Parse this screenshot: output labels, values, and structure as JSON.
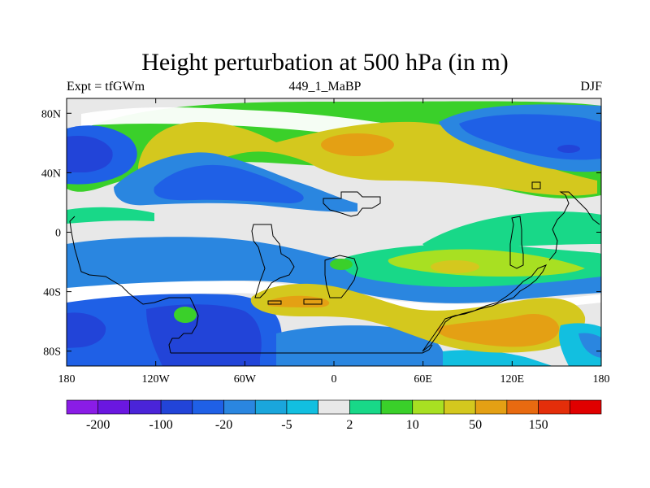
{
  "header": {
    "title": "Height perturbation at 500 hPa (in m)",
    "left_label": "Expt = tfGWm",
    "center_label": "449_1_MaBP",
    "right_label": "DJF"
  },
  "chart_data": {
    "type": "filled-contour-map",
    "title": "Height perturbation at 500 hPa (in m)",
    "variable": "Height perturbation at 500 hPa",
    "units": "m",
    "experiment": "tfGWm",
    "case": "449_1_MaBP",
    "season": "DJF",
    "xlim": [
      -180,
      180
    ],
    "ylim": [
      -90,
      90
    ],
    "x_ticks": [
      {
        "value": -180,
        "label": "180"
      },
      {
        "value": -120,
        "label": "120W"
      },
      {
        "value": -60,
        "label": "60W"
      },
      {
        "value": 0,
        "label": "0"
      },
      {
        "value": 60,
        "label": "60E"
      },
      {
        "value": 120,
        "label": "120E"
      },
      {
        "value": 180,
        "label": "180"
      }
    ],
    "y_ticks": [
      {
        "value": 80,
        "label": "80N"
      },
      {
        "value": 40,
        "label": "40N"
      },
      {
        "value": 0,
        "label": "0"
      },
      {
        "value": -40,
        "label": "40S"
      },
      {
        "value": -80,
        "label": "80S"
      }
    ],
    "levels": [
      -200,
      -150,
      -100,
      -50,
      -20,
      -10,
      -5,
      -2,
      2,
      5,
      10,
      20,
      50,
      100,
      150,
      200
    ],
    "colorbar_labels": [
      "-200",
      "-100",
      "-20",
      "-5",
      "2",
      "10",
      "50",
      "150"
    ],
    "colors": [
      "#8a1ce6",
      "#6a17e0",
      "#4a24d8",
      "#2244d8",
      "#1f60e6",
      "#2a86e0",
      "#1aa6dc",
      "#12bfe0",
      "#e8e8e8",
      "#18d888",
      "#3ad02a",
      "#a8e022",
      "#d4c81e",
      "#e4a014",
      "#e86a10",
      "#e42e0a",
      "#e00000"
    ],
    "features": [
      {
        "name": "arctic-high-band",
        "lon": [
          -150,
          180
        ],
        "lat": [
          66,
          84
        ],
        "value": 10
      },
      {
        "name": "north-atlantic-eurasia-high",
        "lon": [
          -60,
          135
        ],
        "lat": [
          32,
          80
        ],
        "value": 50
      },
      {
        "name": "central-asia-max",
        "lon": [
          -10,
          40
        ],
        "lat": [
          58,
          72
        ],
        "value": 100
      },
      {
        "name": "north-pacific-low",
        "lon": [
          -180,
          -130
        ],
        "lat": [
          40,
          76
        ],
        "value": -20
      },
      {
        "name": "north-america-low",
        "lon": [
          -120,
          15
        ],
        "lat": [
          30,
          52
        ],
        "value": -20
      },
      {
        "name": "east-siberia-low",
        "lon": [
          140,
          180
        ],
        "lat": [
          44,
          80
        ],
        "value": -20
      },
      {
        "name": "tropics-neutral",
        "lon": [
          -180,
          180
        ],
        "lat": [
          -10,
          30
        ],
        "value": 0
      },
      {
        "name": "south-pacific-low",
        "lon": [
          -120,
          -20
        ],
        "lat": [
          -88,
          -40
        ],
        "value": -50
      },
      {
        "name": "southern-hemisphere-high",
        "lon": [
          -20,
          150
        ],
        "lat": [
          -84,
          -38
        ],
        "value": 50
      },
      {
        "name": "indian-ocean-max",
        "lon": [
          90,
          130
        ],
        "lat": [
          -74,
          -60
        ],
        "value": 100
      },
      {
        "name": "pacific-subtropical-high",
        "lon": [
          30,
          120
        ],
        "lat": [
          -40,
          -15
        ],
        "value": 20
      }
    ]
  }
}
